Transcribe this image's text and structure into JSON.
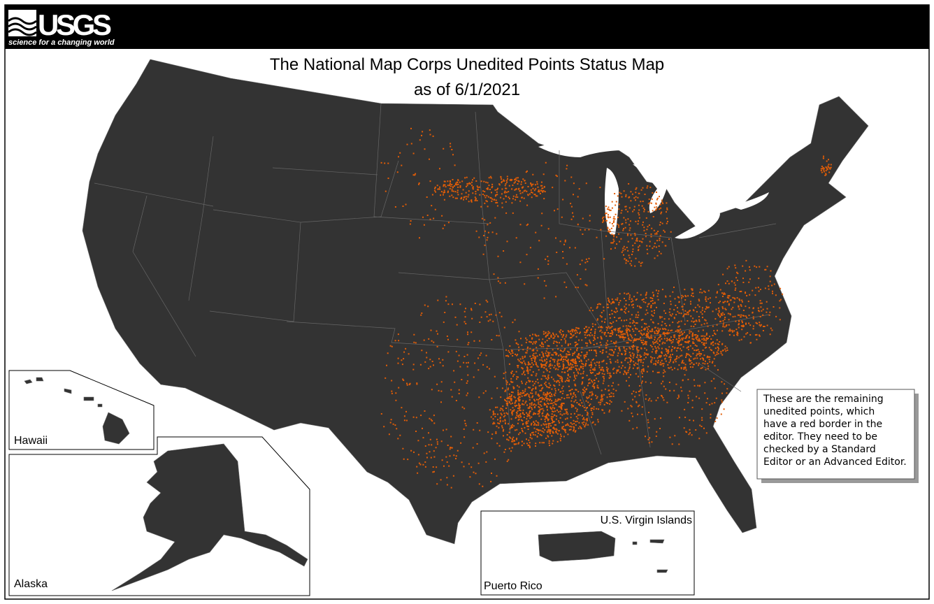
{
  "header": {
    "logo": "USGS",
    "tagline": "science for a changing world"
  },
  "title": [
    "The National Map Corps Unedited Points Status Map",
    "as of 6/1/2021"
  ],
  "insets": {
    "hawaii": "Hawaii",
    "alaska": "Alaska",
    "virgin_islands": "U.S. Virgin Islands",
    "puerto_rico": "Puerto Rico"
  },
  "note": [
    "These are the remaining",
    "unedited points, which",
    "have a red border in the",
    "editor.  They need to be",
    "checked by a Standard",
    "Editor or an Advanced Editor."
  ]
}
